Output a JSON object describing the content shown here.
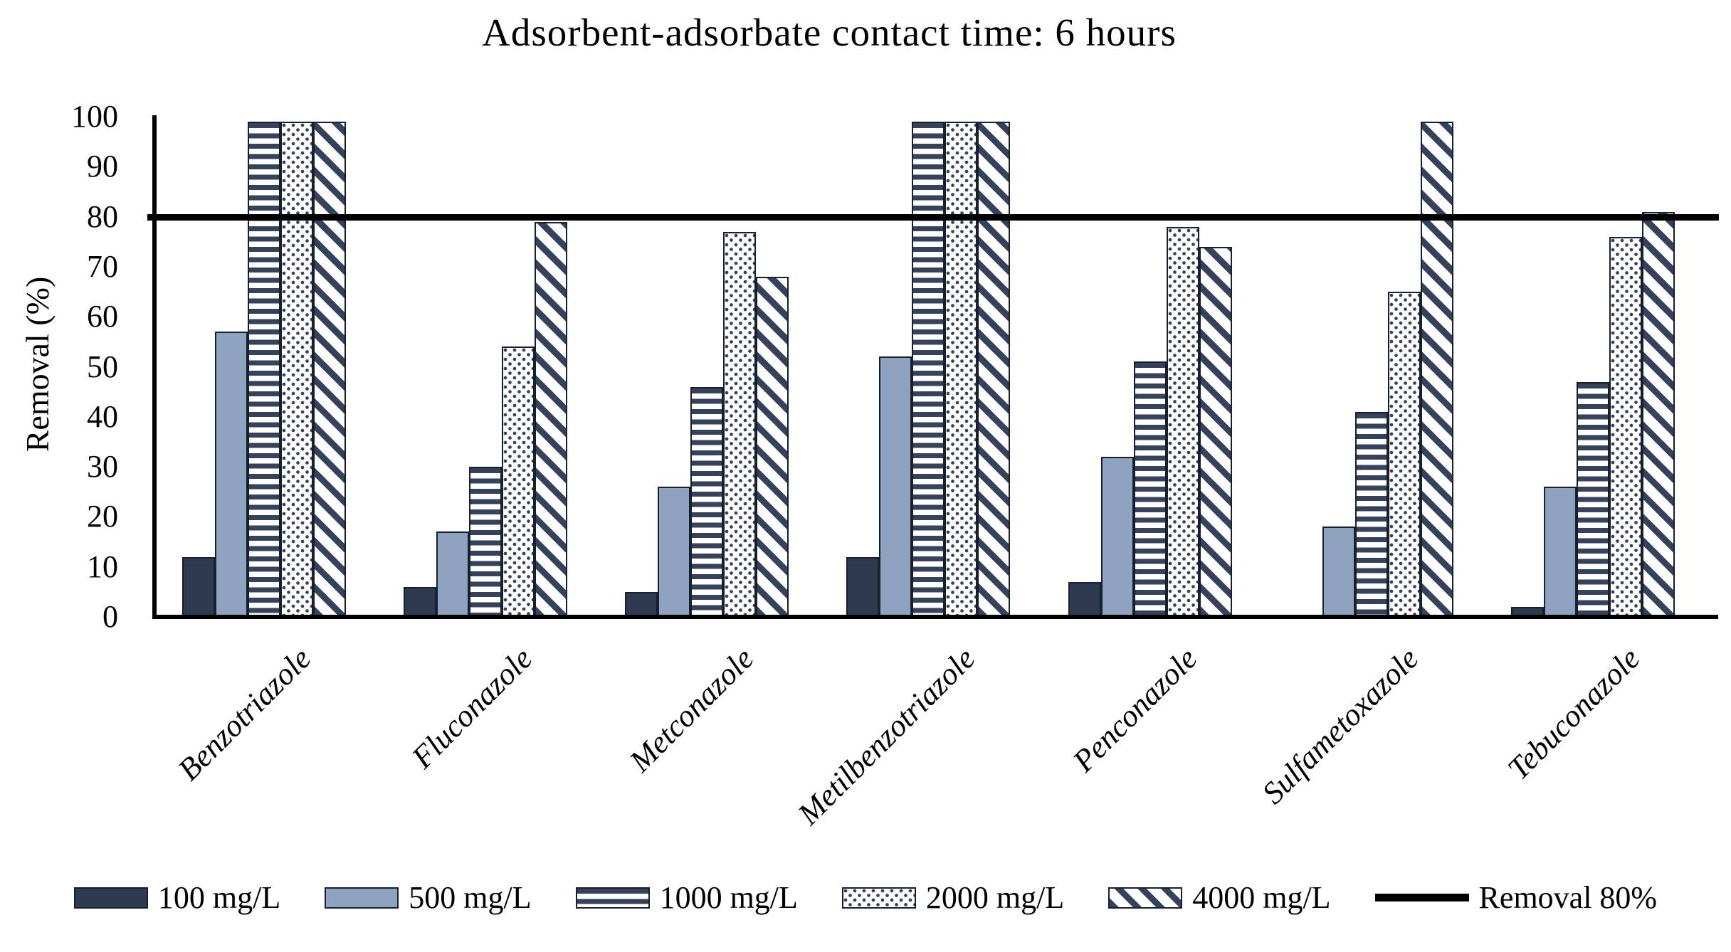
{
  "chart_data": {
    "type": "bar",
    "title": "Adsorbent-adsorbate contact time: 6 hours",
    "ylabel": "Removal (%)",
    "xlabel": "",
    "ylim": [
      0,
      100
    ],
    "yticks": [
      0,
      10,
      20,
      30,
      40,
      50,
      60,
      70,
      80,
      90,
      100
    ],
    "grid": false,
    "legend_position": "bottom",
    "categories": [
      "Benzotriazole",
      "Fluconazole",
      "Metconazole",
      "Metilbenzotriazole",
      "Penconazole",
      "Sulfametoxazole",
      "Tebuconazole"
    ],
    "series": [
      {
        "name": "100 mg/L",
        "pattern": "solid-dark",
        "values": [
          12,
          6,
          5,
          12,
          7,
          0,
          2
        ]
      },
      {
        "name": "500 mg/L",
        "pattern": "solid-light",
        "values": [
          57,
          17,
          26,
          52,
          32,
          18,
          26
        ]
      },
      {
        "name": "1000 mg/L",
        "pattern": "hstripe",
        "values": [
          99,
          30,
          46,
          99,
          51,
          41,
          47
        ]
      },
      {
        "name": "2000 mg/L",
        "pattern": "dots",
        "values": [
          99,
          54,
          77,
          99,
          78,
          65,
          76
        ]
      },
      {
        "name": "4000 mg/L",
        "pattern": "diag",
        "values": [
          99,
          79,
          68,
          99,
          74,
          99,
          81
        ]
      }
    ],
    "reference_line": {
      "label": "Removal 80%",
      "value": 80
    },
    "colors": {
      "bar_dark": "#2d3a50",
      "bar_light": "#8da3bf",
      "pattern_ink": "#36425c",
      "bar_outline": "#18202e",
      "reference_line": "#000000",
      "axis": "#000000"
    }
  }
}
